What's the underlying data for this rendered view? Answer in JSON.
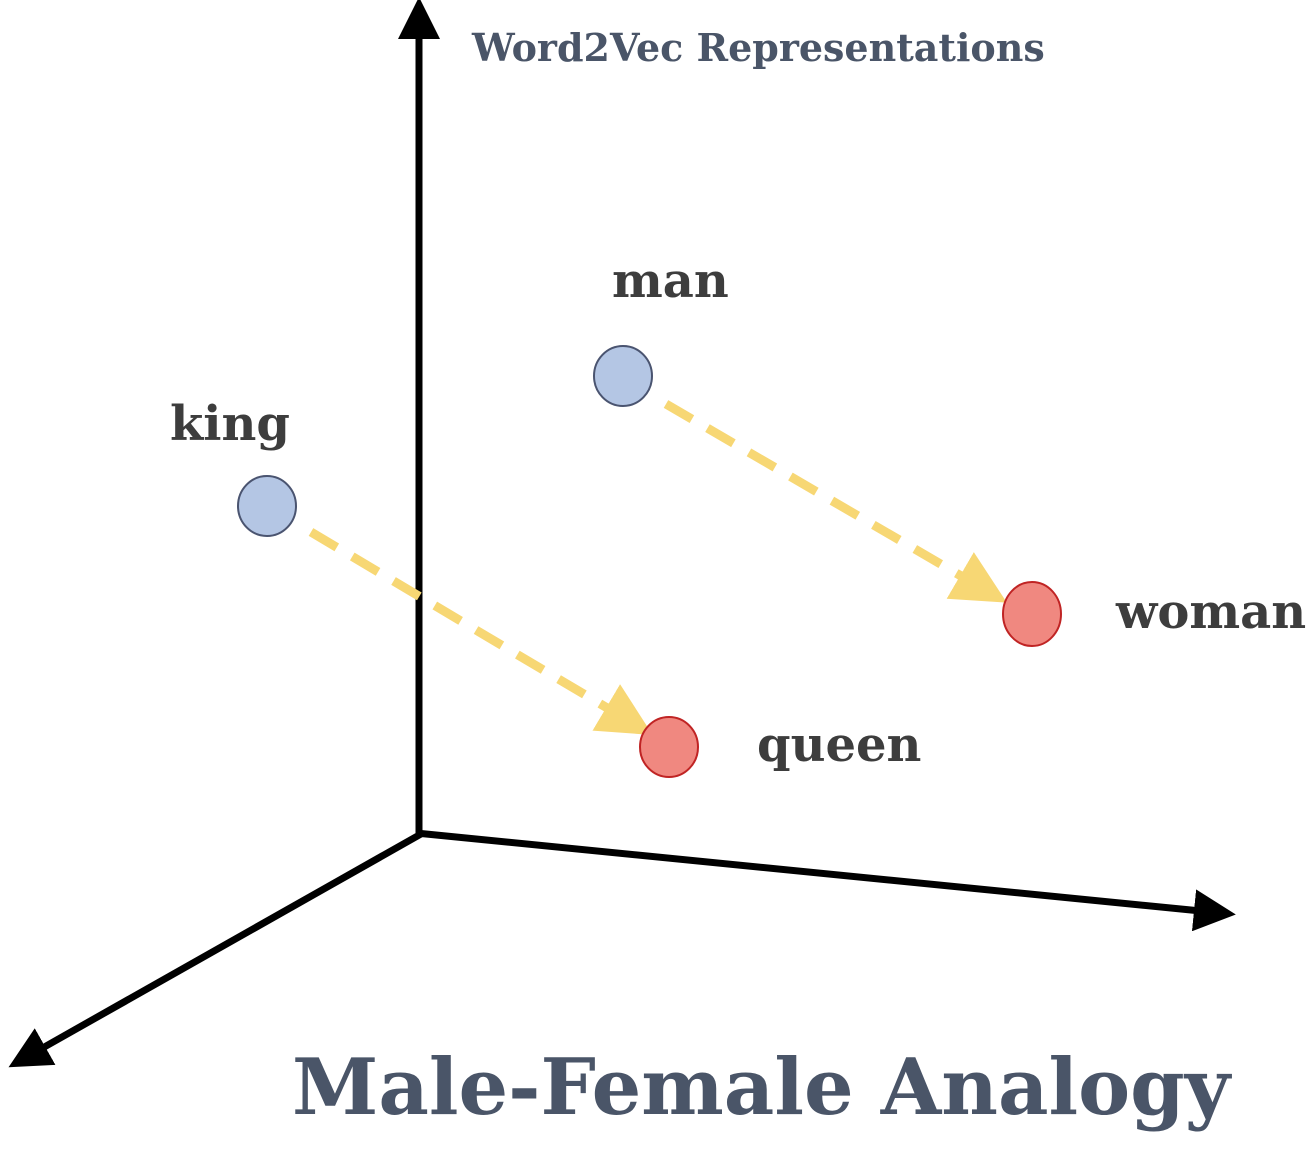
{
  "header": {
    "title": "Word2Vec Representations"
  },
  "footer": {
    "title": "Male-Female Analogy"
  },
  "colors": {
    "title": "#4a5568",
    "label": "#3d3d3d",
    "axis": "#000000",
    "male_fill": "#b4c6e4",
    "male_stroke": "#4a5470",
    "female_fill": "#f08880",
    "female_stroke": "#c02424",
    "arrow": "#f7d774"
  },
  "words": {
    "king": {
      "label": "king",
      "group": "male"
    },
    "man": {
      "label": "man",
      "group": "male"
    },
    "queen": {
      "label": "queen",
      "group": "female"
    },
    "woman": {
      "label": "woman",
      "group": "female"
    }
  },
  "analogies": [
    {
      "from": "king",
      "to": "queen"
    },
    {
      "from": "man",
      "to": "woman"
    }
  ]
}
